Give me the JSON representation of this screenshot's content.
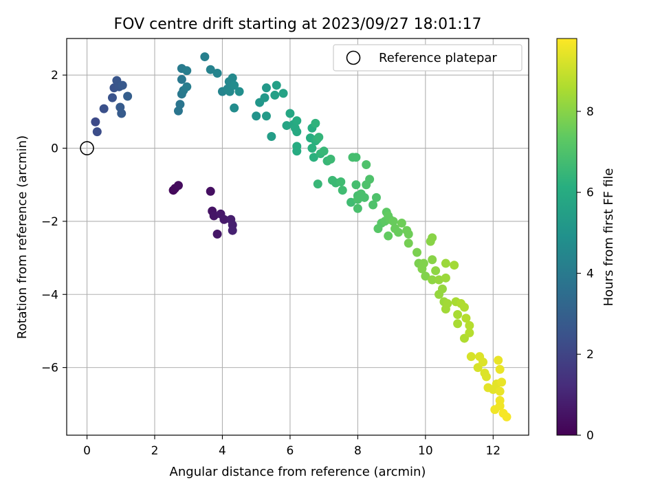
{
  "chart_data": {
    "type": "scatter",
    "title": "FOV centre drift starting at 2023/09/27 18:01:17",
    "xlabel": "Angular distance from reference (arcmin)",
    "ylabel": "Rotation from reference (arcmin)",
    "xlim": [
      -0.6,
      13.05
    ],
    "ylim": [
      -7.85,
      3.0
    ],
    "xticks": [
      0,
      2,
      4,
      6,
      8,
      10,
      12
    ],
    "yticks": [
      -6,
      -4,
      -2,
      0,
      2
    ],
    "grid": true,
    "legend": {
      "position": "upper-right",
      "entries": [
        "Reference platepar"
      ]
    },
    "reference_point": {
      "x": 0,
      "y": 0,
      "label": "Reference platepar"
    },
    "colorbar": {
      "label": "Hours from first FF file",
      "colormap": "viridis",
      "range": [
        0,
        9.8
      ],
      "ticks": [
        0,
        2,
        4,
        6,
        8
      ]
    },
    "points": [
      [
        2.55,
        -1.15,
        0.2
      ],
      [
        2.6,
        -1.1,
        0.25
      ],
      [
        2.7,
        -1.02,
        0.3
      ],
      [
        3.65,
        -1.18,
        0.4
      ],
      [
        3.7,
        -1.72,
        0.5
      ],
      [
        3.75,
        -1.85,
        0.55
      ],
      [
        3.85,
        -2.35,
        0.6
      ],
      [
        3.95,
        -1.8,
        0.65
      ],
      [
        4.05,
        -1.95,
        0.7
      ],
      [
        4.25,
        -1.95,
        0.8
      ],
      [
        4.3,
        -2.1,
        0.85
      ],
      [
        4.3,
        -2.25,
        0.9
      ],
      [
        0.25,
        0.72,
        2.2
      ],
      [
        0.3,
        0.45,
        2.3
      ],
      [
        0.5,
        1.08,
        2.4
      ],
      [
        0.75,
        1.38,
        2.5
      ],
      [
        0.8,
        1.65,
        2.5
      ],
      [
        0.88,
        1.85,
        2.6
      ],
      [
        0.95,
        1.68,
        2.6
      ],
      [
        1.05,
        1.72,
        2.7
      ],
      [
        0.98,
        1.12,
        2.8
      ],
      [
        1.02,
        0.95,
        2.8
      ],
      [
        1.2,
        1.42,
        2.9
      ],
      [
        2.7,
        1.02,
        3.8
      ],
      [
        2.75,
        1.2,
        3.8
      ],
      [
        2.8,
        1.88,
        3.9
      ],
      [
        2.8,
        1.48,
        3.9
      ],
      [
        2.85,
        1.58,
        4.0
      ],
      [
        2.8,
        2.18,
        4.0
      ],
      [
        2.95,
        1.68,
        4.1
      ],
      [
        2.95,
        2.12,
        4.1
      ],
      [
        3.48,
        2.5,
        4.2
      ],
      [
        3.65,
        2.15,
        4.3
      ],
      [
        3.85,
        2.05,
        4.4
      ],
      [
        4.0,
        1.55,
        4.4
      ],
      [
        4.15,
        1.62,
        4.5
      ],
      [
        4.2,
        1.82,
        4.5
      ],
      [
        4.22,
        1.55,
        4.6
      ],
      [
        4.3,
        1.92,
        4.6
      ],
      [
        4.35,
        1.72,
        4.7
      ],
      [
        4.35,
        1.1,
        4.7
      ],
      [
        4.5,
        1.55,
        4.8
      ],
      [
        5.0,
        0.88,
        5.0
      ],
      [
        5.1,
        1.25,
        5.1
      ],
      [
        5.25,
        1.38,
        5.2
      ],
      [
        5.3,
        1.65,
        5.2
      ],
      [
        5.3,
        0.88,
        5.3
      ],
      [
        5.45,
        0.32,
        5.4
      ],
      [
        5.55,
        1.45,
        5.5
      ],
      [
        5.6,
        1.72,
        5.5
      ],
      [
        5.8,
        1.5,
        5.6
      ],
      [
        5.9,
        0.62,
        5.7
      ],
      [
        6.0,
        0.95,
        5.8
      ],
      [
        6.1,
        0.65,
        5.8
      ],
      [
        6.15,
        0.55,
        5.9
      ],
      [
        6.2,
        0.45,
        5.9
      ],
      [
        6.2,
        0.75,
        6.0
      ],
      [
        6.2,
        0.05,
        6.0
      ],
      [
        6.2,
        -0.08,
        6.0
      ],
      [
        6.6,
        0.28,
        6.1
      ],
      [
        6.65,
        0.55,
        6.1
      ],
      [
        6.65,
        0.0,
        6.2
      ],
      [
        6.7,
        -0.25,
        6.2
      ],
      [
        6.75,
        0.2,
        6.2
      ],
      [
        6.75,
        0.68,
        6.3
      ],
      [
        6.8,
        0.25,
        6.3
      ],
      [
        6.85,
        0.3,
        6.4
      ],
      [
        6.9,
        -0.15,
        6.4
      ],
      [
        6.82,
        -0.98,
        6.5
      ],
      [
        7.0,
        -0.08,
        6.5
      ],
      [
        7.1,
        -0.35,
        6.5
      ],
      [
        7.2,
        -0.3,
        6.6
      ],
      [
        7.25,
        -0.88,
        6.6
      ],
      [
        7.35,
        -0.95,
        6.6
      ],
      [
        7.5,
        -0.92,
        6.7
      ],
      [
        7.55,
        -1.15,
        6.7
      ],
      [
        7.8,
        -1.48,
        6.7
      ],
      [
        7.85,
        -0.25,
        6.8
      ],
      [
        7.95,
        -1.0,
        6.8
      ],
      [
        7.95,
        -0.25,
        6.8
      ],
      [
        8.0,
        -1.3,
        6.8
      ],
      [
        8.0,
        -1.4,
        6.9
      ],
      [
        8.0,
        -1.65,
        6.9
      ],
      [
        8.1,
        -1.25,
        6.9
      ],
      [
        8.2,
        -1.35,
        6.9
      ],
      [
        8.25,
        -0.45,
        7.0
      ],
      [
        8.25,
        -1.0,
        7.0
      ],
      [
        8.35,
        -0.85,
        7.0
      ],
      [
        8.45,
        -1.55,
        7.0
      ],
      [
        8.55,
        -1.35,
        7.0
      ],
      [
        8.6,
        -2.2,
        7.2
      ],
      [
        8.7,
        -2.05,
        7.2
      ],
      [
        8.8,
        -2.0,
        7.3
      ],
      [
        8.85,
        -1.75,
        7.3
      ],
      [
        8.9,
        -1.85,
        7.4
      ],
      [
        8.9,
        -2.4,
        7.4
      ],
      [
        8.95,
        -1.95,
        7.4
      ],
      [
        9.05,
        -2.0,
        7.5
      ],
      [
        9.1,
        -2.2,
        7.5
      ],
      [
        9.2,
        -2.3,
        7.5
      ],
      [
        9.3,
        -2.05,
        7.6
      ],
      [
        9.45,
        -2.25,
        7.6
      ],
      [
        9.5,
        -2.35,
        7.6
      ],
      [
        9.5,
        -2.6,
        7.7
      ],
      [
        9.75,
        -2.85,
        7.8
      ],
      [
        9.8,
        -3.15,
        7.8
      ],
      [
        9.9,
        -3.3,
        7.9
      ],
      [
        9.95,
        -3.15,
        7.9
      ],
      [
        10.0,
        -3.5,
        7.9
      ],
      [
        10.15,
        -2.55,
        8.0
      ],
      [
        10.2,
        -2.45,
        8.0
      ],
      [
        10.2,
        -3.05,
        8.0
      ],
      [
        10.2,
        -3.6,
        8.1
      ],
      [
        10.3,
        -3.35,
        8.1
      ],
      [
        10.4,
        -3.6,
        8.2
      ],
      [
        10.4,
        -4.0,
        8.2
      ],
      [
        10.5,
        -3.85,
        8.2
      ],
      [
        10.55,
        -4.2,
        8.3
      ],
      [
        10.6,
        -3.55,
        8.3
      ],
      [
        10.6,
        -3.15,
        8.3
      ],
      [
        10.6,
        -4.4,
        8.4
      ],
      [
        10.65,
        -4.25,
        8.4
      ],
      [
        10.85,
        -3.2,
        8.4
      ],
      [
        10.9,
        -4.2,
        8.5
      ],
      [
        10.95,
        -4.55,
        8.5
      ],
      [
        10.95,
        -4.8,
        8.5
      ],
      [
        11.05,
        -4.25,
        8.6
      ],
      [
        11.15,
        -4.35,
        8.6
      ],
      [
        11.15,
        -5.2,
        8.6
      ],
      [
        11.2,
        -4.65,
        8.7
      ],
      [
        11.3,
        -4.85,
        8.7
      ],
      [
        11.3,
        -5.05,
        8.7
      ],
      [
        11.35,
        -5.7,
        9.2
      ],
      [
        11.55,
        -6.0,
        9.2
      ],
      [
        11.6,
        -5.7,
        9.3
      ],
      [
        11.7,
        -5.85,
        9.3
      ],
      [
        11.75,
        -6.15,
        9.3
      ],
      [
        11.8,
        -6.25,
        9.3
      ],
      [
        11.85,
        -6.55,
        9.4
      ],
      [
        12.0,
        -6.6,
        9.4
      ],
      [
        12.1,
        -6.45,
        9.4
      ],
      [
        12.15,
        -5.8,
        9.5
      ],
      [
        12.2,
        -6.05,
        9.5
      ],
      [
        12.2,
        -6.65,
        9.5
      ],
      [
        12.25,
        -6.4,
        9.5
      ],
      [
        12.05,
        -7.15,
        9.6
      ],
      [
        12.2,
        -7.05,
        9.6
      ],
      [
        12.3,
        -7.25,
        9.7
      ],
      [
        12.4,
        -7.35,
        9.7
      ],
      [
        12.2,
        -6.9,
        9.6
      ]
    ]
  }
}
